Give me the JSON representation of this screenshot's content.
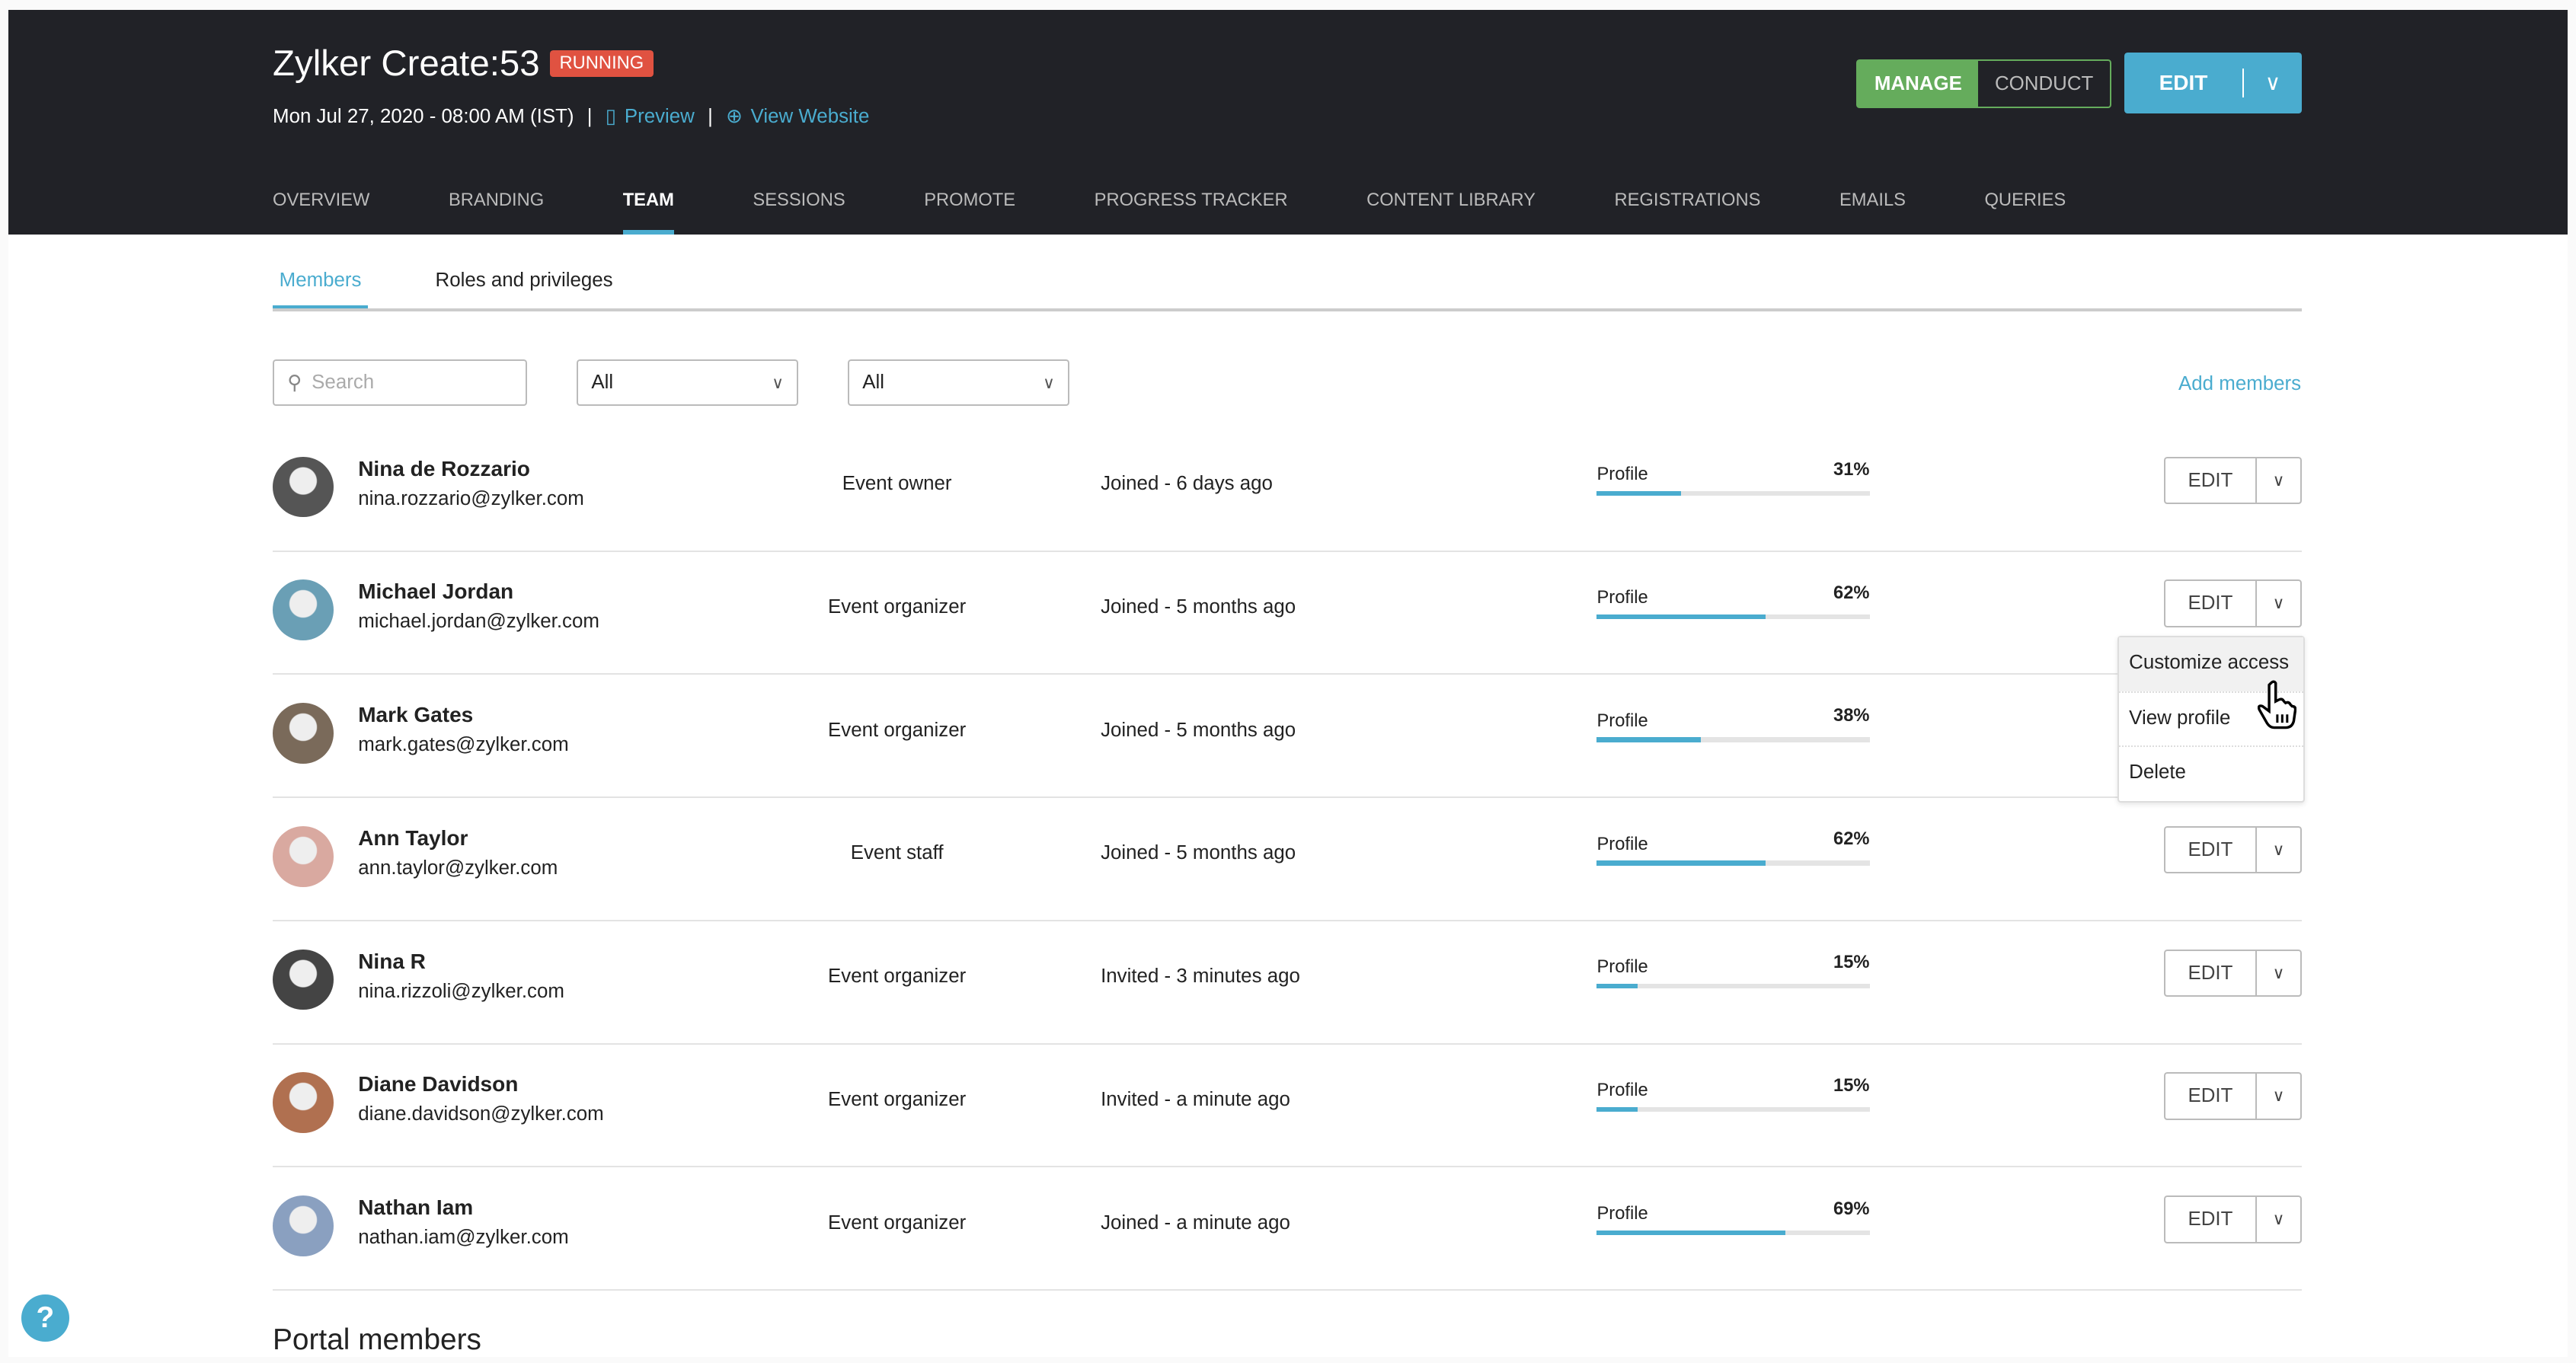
{
  "header": {
    "title": "Zylker Create:53",
    "status": "RUNNING",
    "datetime": "Mon Jul 27, 2020 - 08:00 AM (IST)",
    "preview": "Preview",
    "view_website": "View Website",
    "manage": "MANAGE",
    "conduct": "CONDUCT",
    "edit": "EDIT"
  },
  "nav": [
    "OVERVIEW",
    "BRANDING",
    "TEAM",
    "SESSIONS",
    "PROMOTE",
    "PROGRESS TRACKER",
    "CONTENT LIBRARY",
    "REGISTRATIONS",
    "EMAILS",
    "QUERIES"
  ],
  "active_nav": "TEAM",
  "subtabs": [
    "Members",
    "Roles and privileges"
  ],
  "filters": {
    "search_placeholder": "Search",
    "filter1": "All",
    "filter2": "All",
    "add_members": "Add members"
  },
  "profile_label": "Profile",
  "edit_label": "EDIT",
  "members": [
    {
      "name": "Nina de Rozzario",
      "email": "nina.rozzario@zylker.com",
      "role": "Event owner",
      "status": "Joined - 6 days ago",
      "profile": "31%"
    },
    {
      "name": "Michael Jordan",
      "email": "michael.jordan@zylker.com",
      "role": "Event organizer",
      "status": "Joined - 5 months ago",
      "profile": "62%"
    },
    {
      "name": "Mark Gates",
      "email": "mark.gates@zylker.com",
      "role": "Event organizer",
      "status": "Joined - 5 months ago",
      "profile": "38%"
    },
    {
      "name": "Ann Taylor",
      "email": "ann.taylor@zylker.com",
      "role": "Event staff",
      "status": "Joined - 5 months ago",
      "profile": "62%"
    },
    {
      "name": "Nina R",
      "email": "nina.rizzoli@zylker.com",
      "role": "Event organizer",
      "status": "Invited - 3 minutes ago",
      "profile": "15%"
    },
    {
      "name": "Diane Davidson",
      "email": "diane.davidson@zylker.com",
      "role": "Event organizer",
      "status": "Invited - a minute ago",
      "profile": "15%"
    },
    {
      "name": "Nathan Iam",
      "email": "nathan.iam@zylker.com",
      "role": "Event organizer",
      "status": "Joined - a minute ago",
      "profile": "69%"
    }
  ],
  "menu": [
    "Customize access",
    "View profile",
    "Delete"
  ],
  "portal_title": "Portal members",
  "help": "?",
  "colors": {
    "accent": "#4aaccf",
    "header": "#212227",
    "running": "#e05241",
    "manage": "#65ac5c"
  }
}
